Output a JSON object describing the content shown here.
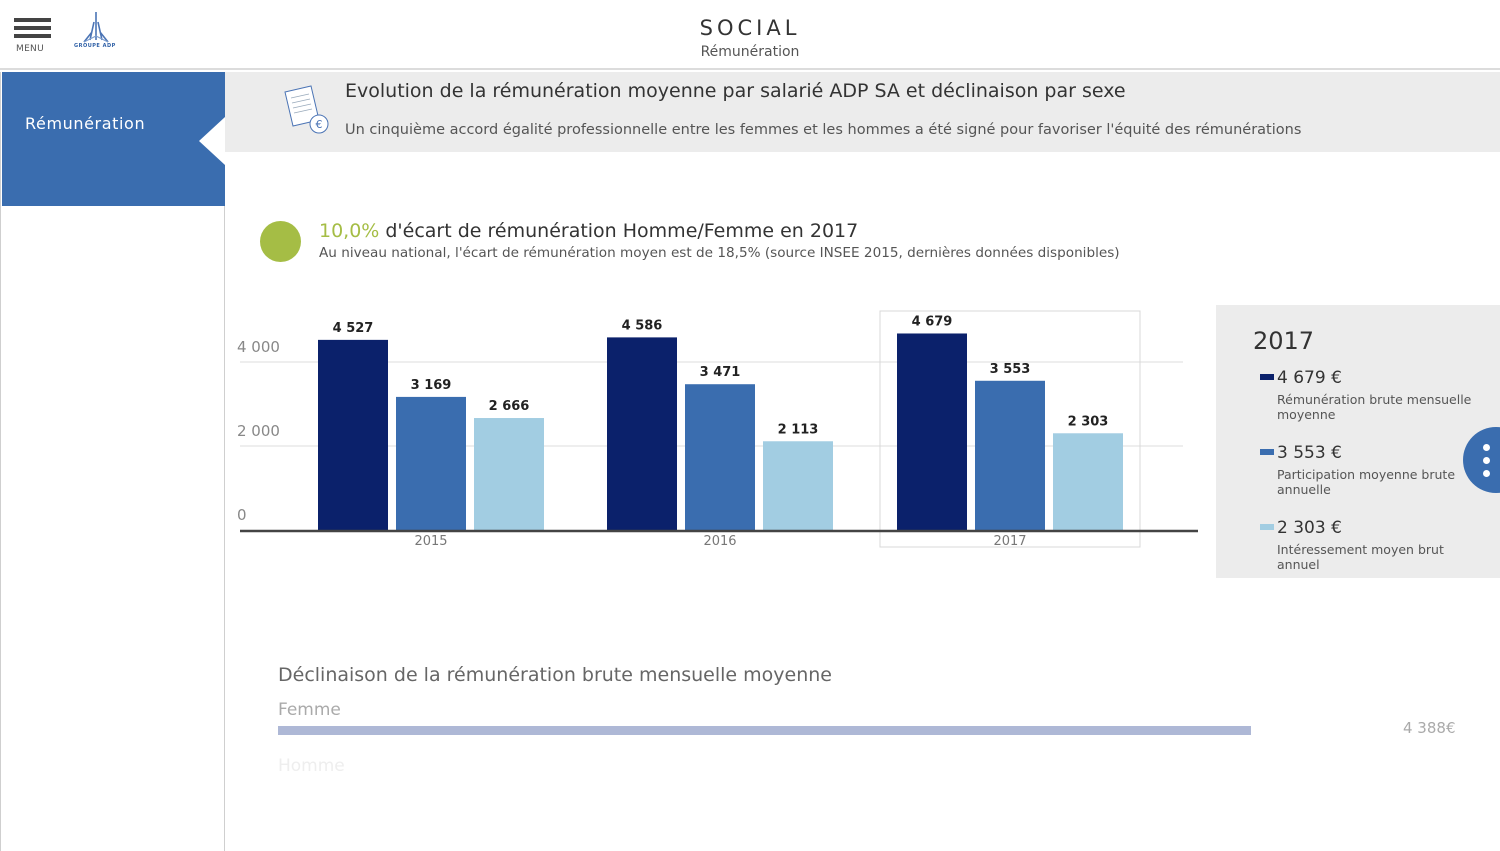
{
  "header": {
    "menu_label": "MENU",
    "logo_text": "GROUPE ADP",
    "title": "SOCIAL",
    "subtitle": "Rémunération"
  },
  "sidebar": {
    "items": [
      {
        "label": "Rémunération",
        "active": true
      }
    ]
  },
  "intro": {
    "icon": "document-euro-icon",
    "title": "Evolution de la rémunération moyenne par salarié ADP SA et déclinaison par sexe",
    "text": "Un cinquième accord égalité professionnelle entre les femmes et les hommes a été signé pour favoriser l'équité des rémunérations"
  },
  "kpi": {
    "value": "10,0%",
    "label": "d'écart de rémunération Homme/Femme en 2017",
    "subtext": "Au niveau national, l'écart de rémunération moyen est de 18,5% (source INSEE 2015, dernières données disponibles)",
    "dot_color": "#a5bd45"
  },
  "chart_data": {
    "type": "bar",
    "title": "",
    "xlabel": "",
    "ylabel": "",
    "categories": [
      "2015",
      "2016",
      "2017"
    ],
    "series": [
      {
        "name": "Rémunération brute mensuelle moyenne",
        "color": "#0b216b",
        "values": [
          4527,
          4586,
          4679
        ],
        "labels": [
          "4 527",
          "4 586",
          "4 679"
        ]
      },
      {
        "name": "Participation moyenne brute annuelle",
        "color": "#3a6daf",
        "values": [
          3169,
          3471,
          3553
        ],
        "labels": [
          "3 169",
          "3 471",
          "3 553"
        ]
      },
      {
        "name": "Intéressement moyen brut annuel",
        "color": "#a2cde2",
        "values": [
          2666,
          2113,
          2303
        ],
        "labels": [
          "2 666",
          "2 113",
          "2 303"
        ]
      }
    ],
    "yticks": [
      0,
      2000,
      4000
    ],
    "ytick_labels": [
      "0",
      "2 000",
      "4 000"
    ],
    "ylim": [
      0,
      4800
    ],
    "grid": true,
    "highlighted_category": "2017",
    "legend_position": "right"
  },
  "legend": {
    "year": "2017",
    "items": [
      {
        "value": "4 679 €",
        "desc": "Rémunération brute mensuelle moyenne",
        "color": "#0b216b"
      },
      {
        "value": "3 553 €",
        "desc": "Participation moyenne brute annuelle",
        "color": "#3a6daf"
      },
      {
        "value": "2 303 €",
        "desc": "Intéressement moyen brut annuel",
        "color": "#a2cde2"
      }
    ]
  },
  "fab": {
    "icon": "more-vertical-icon"
  },
  "declinaison": {
    "title": "Déclinaison de la rémunération brute mensuelle moyenne",
    "rows": [
      {
        "label": "Femme",
        "value": "4 388€",
        "progress": 0.846,
        "label_color": "#aaaaaa"
      },
      {
        "label": "Homme",
        "value": "",
        "progress": 0,
        "label_color": "#eeeeee"
      }
    ]
  }
}
